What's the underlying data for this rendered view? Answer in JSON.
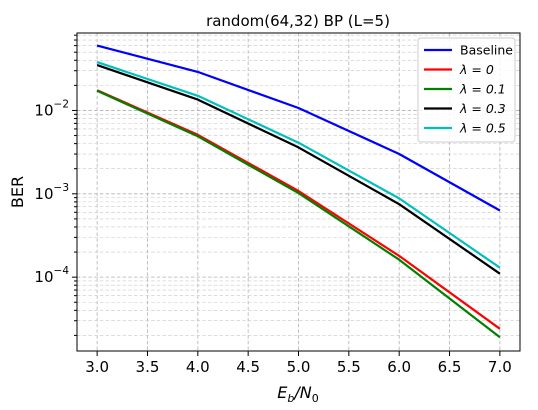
{
  "chart_data": {
    "type": "line",
    "title": "random(64,32) BP (L=5)",
    "xlabel_base": "E",
    "xlabel_sub1": "b",
    "xlabel_mid": "/N",
    "xlabel_sub2": "0",
    "ylabel": "BER",
    "y_scale": "log",
    "xlim": [
      2.8,
      7.2
    ],
    "ylim": [
      1.3e-05,
      0.085
    ],
    "grid": true,
    "legend_position": "top-right",
    "x_ticks": [
      {
        "value": 3.0,
        "label": "3.0"
      },
      {
        "value": 3.5,
        "label": "3.5"
      },
      {
        "value": 4.0,
        "label": "4.0"
      },
      {
        "value": 4.5,
        "label": "4.5"
      },
      {
        "value": 5.0,
        "label": "5.0"
      },
      {
        "value": 5.5,
        "label": "5.5"
      },
      {
        "value": 6.0,
        "label": "6.0"
      },
      {
        "value": 6.5,
        "label": "6.5"
      },
      {
        "value": 7.0,
        "label": "7.0"
      }
    ],
    "y_ticks": [
      {
        "value": 0.01,
        "base": "10",
        "exp": "−2"
      },
      {
        "value": 0.001,
        "base": "10",
        "exp": "−3"
      },
      {
        "value": 0.0001,
        "base": "10",
        "exp": "−4"
      }
    ],
    "x": [
      3,
      4,
      5,
      6,
      7
    ],
    "series": [
      {
        "name": "Baseline",
        "name_is_math": false,
        "color": "#0000ff",
        "values": [
          0.06,
          0.029,
          0.0107,
          0.003,
          0.00063
        ]
      },
      {
        "name": "λ = 0",
        "name_is_math": true,
        "color": "#ff0000",
        "values": [
          0.0175,
          0.0051,
          0.00108,
          0.00018,
          2.4e-05
        ]
      },
      {
        "name": "λ = 0.1",
        "name_is_math": true,
        "color": "#008000",
        "values": [
          0.0172,
          0.0049,
          0.00102,
          0.000162,
          1.9e-05
        ]
      },
      {
        "name": "λ = 0.3",
        "name_is_math": true,
        "color": "#000000",
        "values": [
          0.035,
          0.0135,
          0.0036,
          0.00075,
          0.00011
        ]
      },
      {
        "name": "λ = 0.5",
        "name_is_math": true,
        "color": "#00bfbf",
        "values": [
          0.038,
          0.015,
          0.0041,
          0.00088,
          0.00013
        ]
      }
    ]
  }
}
